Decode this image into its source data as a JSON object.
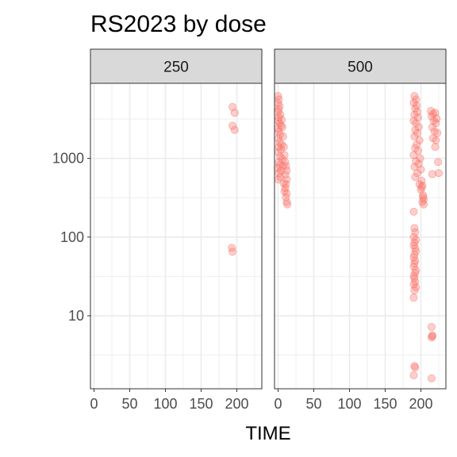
{
  "chart_data": {
    "type": "scatter",
    "title": "RS2023 by dose",
    "xlabel": "TIME",
    "ylabel": "",
    "y_scale": "log10",
    "xlim": [
      -5,
      235
    ],
    "ylim": [
      1.18,
      9000
    ],
    "x_ticks": [
      0,
      50,
      100,
      150,
      200
    ],
    "x_tick_labels": [
      "0",
      "50",
      "100",
      "150",
      "200"
    ],
    "y_ticks": [
      10,
      100,
      1000
    ],
    "y_tick_labels": [
      "10",
      "100",
      "1000"
    ],
    "grid": true,
    "point_color": "#F8766D",
    "facets": [
      {
        "label": "250",
        "points": [
          [
            194,
            4500
          ],
          [
            197,
            3800
          ],
          [
            194,
            2600
          ],
          [
            197,
            2300
          ],
          [
            193,
            73
          ],
          [
            194,
            65
          ]
        ]
      },
      {
        "label": "500",
        "points": [
          [
            0,
            6200
          ],
          [
            1,
            5600
          ],
          [
            0,
            5000
          ],
          [
            2,
            4600
          ],
          [
            1,
            4200
          ],
          [
            0,
            3900
          ],
          [
            3,
            3600
          ],
          [
            1,
            3300
          ],
          [
            0,
            3000
          ],
          [
            2,
            2800
          ],
          [
            4,
            2600
          ],
          [
            0,
            2400
          ],
          [
            1,
            2200
          ],
          [
            3,
            2000
          ],
          [
            0,
            1800
          ],
          [
            2,
            1600
          ],
          [
            5,
            1500
          ],
          [
            1,
            1400
          ],
          [
            4,
            1300
          ],
          [
            0,
            1200
          ],
          [
            3,
            1050
          ],
          [
            6,
            980
          ],
          [
            1,
            900
          ],
          [
            2,
            820
          ],
          [
            0,
            750
          ],
          [
            4,
            700
          ],
          [
            1,
            650
          ],
          [
            3,
            580
          ],
          [
            0,
            540
          ],
          [
            10,
            900
          ],
          [
            11,
            800
          ],
          [
            12,
            700
          ],
          [
            10,
            620
          ],
          [
            12,
            540
          ],
          [
            11,
            470
          ],
          [
            10,
            420
          ],
          [
            12,
            360
          ],
          [
            11,
            320
          ],
          [
            12,
            280
          ],
          [
            13,
            260
          ],
          [
            5,
            3100
          ],
          [
            6,
            2500
          ],
          [
            7,
            1900
          ],
          [
            8,
            1400
          ],
          [
            9,
            1100
          ],
          [
            7,
            800
          ],
          [
            8,
            480
          ],
          [
            9,
            380
          ],
          [
            191,
            6200
          ],
          [
            193,
            5600
          ],
          [
            190,
            5100
          ],
          [
            194,
            4700
          ],
          [
            192,
            4300
          ],
          [
            195,
            3900
          ],
          [
            191,
            3600
          ],
          [
            196,
            3300
          ],
          [
            190,
            3000
          ],
          [
            193,
            2800
          ],
          [
            197,
            2500
          ],
          [
            192,
            2300
          ],
          [
            195,
            2100
          ],
          [
            191,
            1900
          ],
          [
            198,
            1700
          ],
          [
            194,
            1500
          ],
          [
            192,
            1350
          ],
          [
            196,
            1250
          ],
          [
            190,
            1100
          ],
          [
            199,
            1000
          ],
          [
            193,
            920
          ],
          [
            197,
            850
          ],
          [
            191,
            780
          ],
          [
            200,
            720
          ],
          [
            195,
            650
          ],
          [
            192,
            580
          ],
          [
            201,
            520
          ],
          [
            198,
            470
          ],
          [
            202,
            450
          ],
          [
            200,
            400
          ],
          [
            203,
            340
          ],
          [
            204,
            300
          ],
          [
            202,
            280
          ],
          [
            204,
            260
          ],
          [
            203,
            320
          ],
          [
            201,
            430
          ],
          [
            190,
            210
          ],
          [
            191,
            130
          ],
          [
            192,
            115
          ],
          [
            190,
            100
          ],
          [
            193,
            92
          ],
          [
            191,
            85
          ],
          [
            190,
            78
          ],
          [
            192,
            72
          ],
          [
            193,
            66
          ],
          [
            191,
            60
          ],
          [
            190,
            55
          ],
          [
            192,
            50
          ],
          [
            191,
            46
          ],
          [
            190,
            42
          ],
          [
            193,
            38
          ],
          [
            192,
            35
          ],
          [
            190,
            32
          ],
          [
            191,
            30
          ],
          [
            192,
            27
          ],
          [
            190,
            25
          ],
          [
            193,
            23
          ],
          [
            191,
            21
          ],
          [
            190,
            17
          ],
          [
            191,
            2.3
          ],
          [
            192,
            2.2
          ],
          [
            190,
            1.75
          ],
          [
            214,
            4000
          ],
          [
            217,
            3700
          ],
          [
            215,
            3400
          ],
          [
            220,
            3800
          ],
          [
            222,
            3200
          ],
          [
            218,
            3000
          ],
          [
            221,
            2800
          ],
          [
            216,
            2500
          ],
          [
            219,
            2200
          ],
          [
            223,
            2100
          ],
          [
            217,
            1800
          ],
          [
            221,
            1700
          ],
          [
            220,
            1400
          ],
          [
            224,
            900
          ],
          [
            225,
            650
          ],
          [
            216,
            630
          ],
          [
            215,
            7.2
          ],
          [
            216,
            5.5
          ],
          [
            215,
            5.3
          ],
          [
            216,
            5.6
          ],
          [
            215,
            1.6
          ]
        ]
      }
    ]
  }
}
